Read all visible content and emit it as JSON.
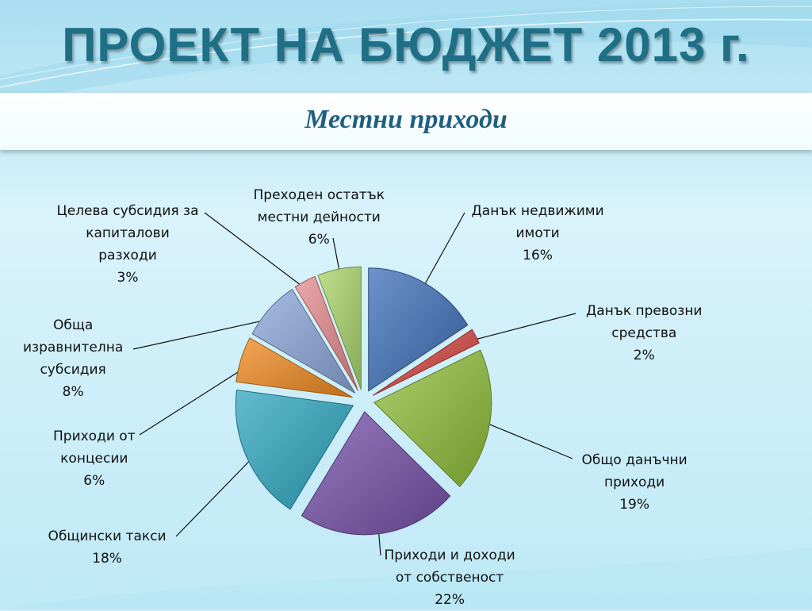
{
  "slide": {
    "title": "ПРОЕКТ НА БЮДЖЕТ 2013 г.",
    "subtitle": "Местни приходи"
  },
  "colors": {
    "title": "#1f6f86",
    "subtitle": "#1f5f7f",
    "background": "#cfeff8"
  },
  "chart_data": {
    "type": "pie",
    "exploded": true,
    "start_angle_deg": 0,
    "direction": "clockwise",
    "slices": [
      {
        "lines": [
          "Данък недвижими",
          "имоти",
          "16%"
        ],
        "value": 16,
        "color": "#3d6fb8"
      },
      {
        "lines": [
          "Данък превозни",
          "средства",
          "2%"
        ],
        "value": 2,
        "color": "#d64541"
      },
      {
        "lines": [
          "Общо данъчни",
          "приходи",
          "19%"
        ],
        "value": 19,
        "color": "#8fbd3a"
      },
      {
        "lines": [
          "Приходи и доходи",
          "от собственост",
          "22%"
        ],
        "value": 22,
        "color": "#7650a8"
      },
      {
        "lines": [
          "Общински такси",
          "18%"
        ],
        "value": 18,
        "color": "#2ea6bf"
      },
      {
        "lines": [
          "Приходи от",
          "концесии",
          "6%"
        ],
        "value": 6,
        "color": "#ef8a1f"
      },
      {
        "lines": [
          "Обща",
          "изравнителна",
          "субсидия",
          "8%"
        ],
        "value": 8,
        "color": "#8aa6d8"
      },
      {
        "lines": [
          "Целева субсидия за",
          "капиталови",
          "разходи",
          "3%"
        ],
        "value": 3,
        "color": "#e48a8c"
      },
      {
        "lines": [
          "Преходен остатък",
          "местни дейности",
          "6%"
        ],
        "value": 6,
        "color": "#a9d46a"
      }
    ]
  }
}
